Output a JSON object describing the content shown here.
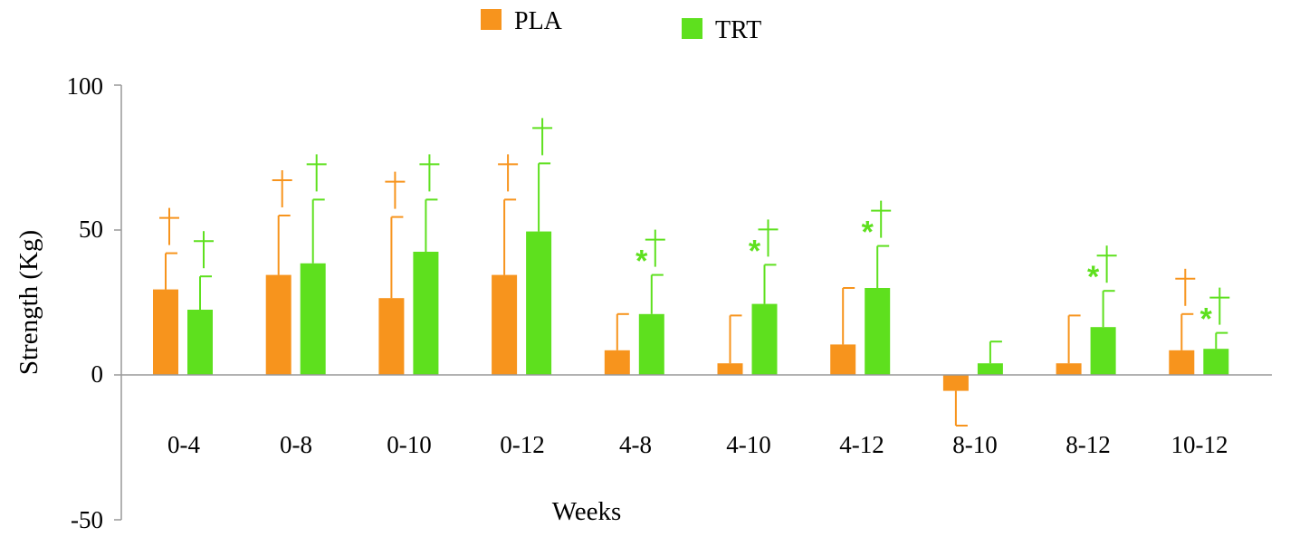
{
  "chart_data": {
    "type": "bar",
    "title": "",
    "xlabel": "Weeks",
    "ylabel": "Strength (Kg)",
    "ylim": [
      -50,
      100
    ],
    "yticks": [
      "100",
      "50",
      "0",
      "-50"
    ],
    "grid": false,
    "legend_position": "top-center",
    "categories": [
      "0-4",
      "0-8",
      "0-10",
      "0-12",
      "4-8",
      "4-10",
      "4-12",
      "8-10",
      "8-12",
      "10-12"
    ],
    "series": [
      {
        "name": "PLA",
        "color": "#f7941d",
        "values": [
          29.5,
          34.5,
          26.5,
          34.5,
          8.5,
          4.0,
          10.5,
          -5.5,
          4.0,
          8.5
        ],
        "error": [
          12.5,
          20.5,
          28.0,
          26.0,
          12.5,
          16.5,
          19.5,
          12.0,
          16.5,
          12.5
        ],
        "annotations": [
          "†",
          "†",
          "†",
          "†",
          "",
          "",
          "",
          "",
          "",
          "†"
        ]
      },
      {
        "name": "TRT",
        "color": "#5ee01e",
        "values": [
          22.5,
          38.5,
          42.5,
          49.5,
          21.0,
          24.5,
          30.0,
          4.0,
          16.5,
          9.0
        ],
        "error": [
          11.5,
          22.0,
          18.0,
          23.5,
          13.5,
          13.5,
          14.5,
          7.5,
          12.5,
          5.5
        ],
        "annotations": [
          "†",
          "†",
          "†",
          "†",
          "*†",
          "*†",
          "*†",
          "",
          "*†",
          "*†"
        ]
      }
    ]
  }
}
